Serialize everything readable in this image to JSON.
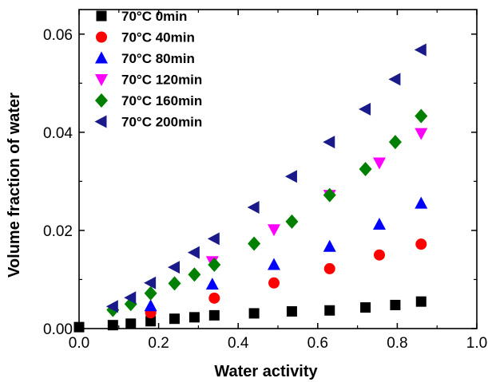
{
  "chart_data": {
    "type": "scatter",
    "xlabel": "Water activity",
    "ylabel": "Volume fraction of water",
    "xlim": [
      0.0,
      1.0
    ],
    "ylim": [
      0.0,
      0.065
    ],
    "x_ticks": [
      0.0,
      0.2,
      0.4,
      0.6,
      0.8,
      1.0
    ],
    "x_tick_labels": [
      "0.0",
      "0.2",
      "0.4",
      "0.6",
      "0.8",
      "1.0"
    ],
    "y_ticks": [
      0.0,
      0.02,
      0.04,
      0.06
    ],
    "y_tick_labels": [
      "0.00",
      "0.02",
      "0.04",
      "0.06"
    ],
    "grid": false,
    "legend_position": "top-left",
    "series": [
      {
        "name": "70°C 0min",
        "marker": "square",
        "color": "#000000",
        "points": [
          [
            0.0,
            0.0003
          ],
          [
            0.085,
            0.0007
          ],
          [
            0.13,
            0.001
          ],
          [
            0.18,
            0.0015
          ],
          [
            0.24,
            0.002
          ],
          [
            0.29,
            0.0023
          ],
          [
            0.34,
            0.0027
          ],
          [
            0.44,
            0.0031
          ],
          [
            0.535,
            0.0035
          ],
          [
            0.63,
            0.0037
          ],
          [
            0.72,
            0.0043
          ],
          [
            0.795,
            0.0048
          ],
          [
            0.86,
            0.0055
          ]
        ]
      },
      {
        "name": "70°C 40min",
        "marker": "circle",
        "color": "#ff0000",
        "points": [
          [
            0.18,
            0.0032
          ],
          [
            0.34,
            0.0062
          ],
          [
            0.49,
            0.0093
          ],
          [
            0.63,
            0.0122
          ],
          [
            0.755,
            0.015
          ],
          [
            0.86,
            0.0172
          ]
        ]
      },
      {
        "name": "70°C 80min",
        "marker": "triangle-up",
        "color": "#0000ff",
        "points": [
          [
            0.18,
            0.0046
          ],
          [
            0.335,
            0.009
          ],
          [
            0.49,
            0.013
          ],
          [
            0.63,
            0.0167
          ],
          [
            0.755,
            0.0212
          ],
          [
            0.86,
            0.0255
          ]
        ]
      },
      {
        "name": "70°C 120min",
        "marker": "triangle-down",
        "color": "#ff00ff",
        "points": [
          [
            0.335,
            0.0137
          ],
          [
            0.49,
            0.0202
          ],
          [
            0.63,
            0.0272
          ],
          [
            0.755,
            0.0338
          ],
          [
            0.86,
            0.0398
          ]
        ]
      },
      {
        "name": "70°C 160min",
        "marker": "diamond",
        "color": "#008000",
        "points": [
          [
            0.085,
            0.0038
          ],
          [
            0.13,
            0.005
          ],
          [
            0.18,
            0.0072
          ],
          [
            0.24,
            0.0092
          ],
          [
            0.29,
            0.011
          ],
          [
            0.34,
            0.013
          ],
          [
            0.44,
            0.0173
          ],
          [
            0.535,
            0.0218
          ],
          [
            0.63,
            0.0272
          ],
          [
            0.72,
            0.0325
          ],
          [
            0.795,
            0.038
          ],
          [
            0.86,
            0.0433
          ]
        ]
      },
      {
        "name": "70°C 200min",
        "marker": "triangle-left",
        "color": "#1a1a8a",
        "points": [
          [
            0.085,
            0.0045
          ],
          [
            0.13,
            0.0063
          ],
          [
            0.18,
            0.0093
          ],
          [
            0.24,
            0.0125
          ],
          [
            0.29,
            0.0155
          ],
          [
            0.34,
            0.0183
          ],
          [
            0.44,
            0.0247
          ],
          [
            0.535,
            0.031
          ],
          [
            0.63,
            0.038
          ],
          [
            0.72,
            0.0447
          ],
          [
            0.795,
            0.0508
          ],
          [
            0.86,
            0.0568
          ]
        ]
      }
    ]
  }
}
